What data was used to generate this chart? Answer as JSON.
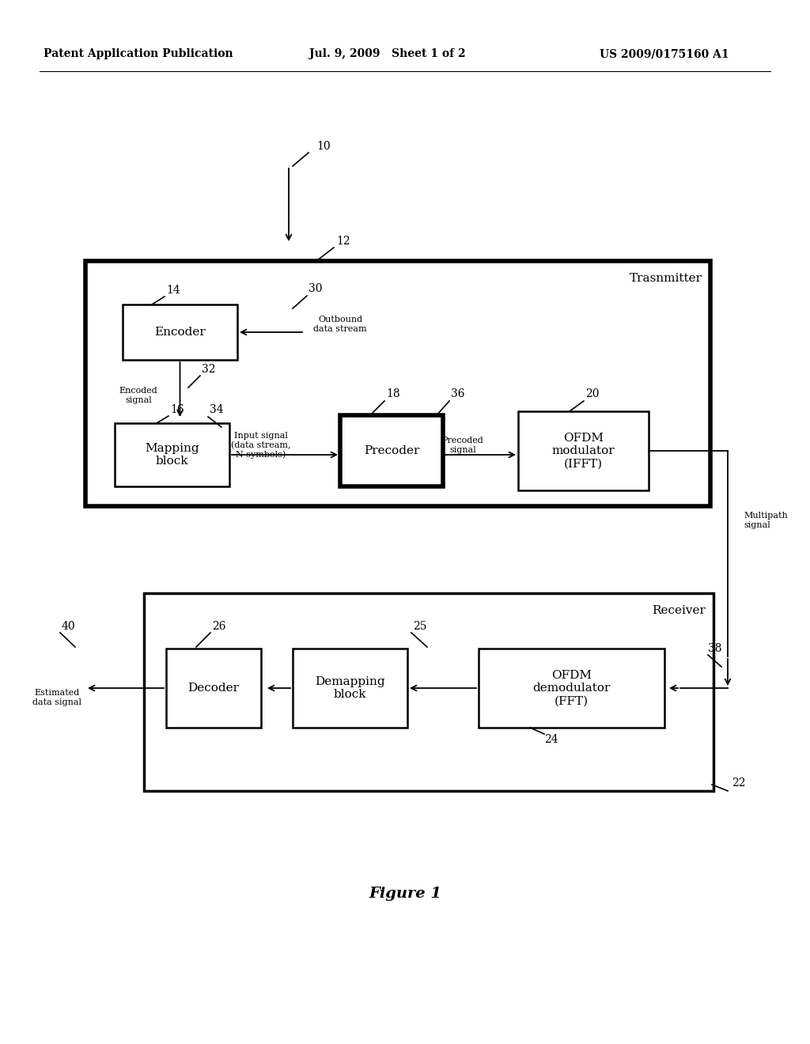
{
  "background_color": "#ffffff",
  "header_left": "Patent Application Publication",
  "header_mid": "Jul. 9, 2009   Sheet 1 of 2",
  "header_right": "US 2009/0175160 A1",
  "figure_label": "Figure 1",
  "transmitter_label": "Trasnmitter",
  "receiver_label": "Receiver",
  "ref_10": "10",
  "ref_12": "12",
  "ref_14": "14",
  "ref_16": "16",
  "ref_18": "18",
  "ref_20": "20",
  "ref_22": "22",
  "ref_24": "24",
  "ref_25": "25",
  "ref_26": "26",
  "ref_30": "30",
  "ref_32": "32",
  "ref_34": "34",
  "ref_36": "36",
  "ref_38": "38",
  "ref_40": "40",
  "encoder_label": "Encoder",
  "mapping_label": "Mapping\nblock",
  "precoder_label": "Precoder",
  "ofdm_mod_label": "OFDM\nmodulator\n(IFFT)",
  "decoder_label": "Decoder",
  "demapping_label": "Demapping\nblock",
  "ofdm_demod_label": "OFDM\ndemodulator\n(FFT)",
  "outbound_label": "Outbound\ndata stream",
  "encoded_label": "Encoded\nsignal",
  "input_signal_label": "Input signal\n(data stream,\nN symbols)",
  "precoded_label": "Precoded\nsignal",
  "multipath_label": "Multipath\nsignal",
  "estimated_label": "Estimated\ndata signal"
}
